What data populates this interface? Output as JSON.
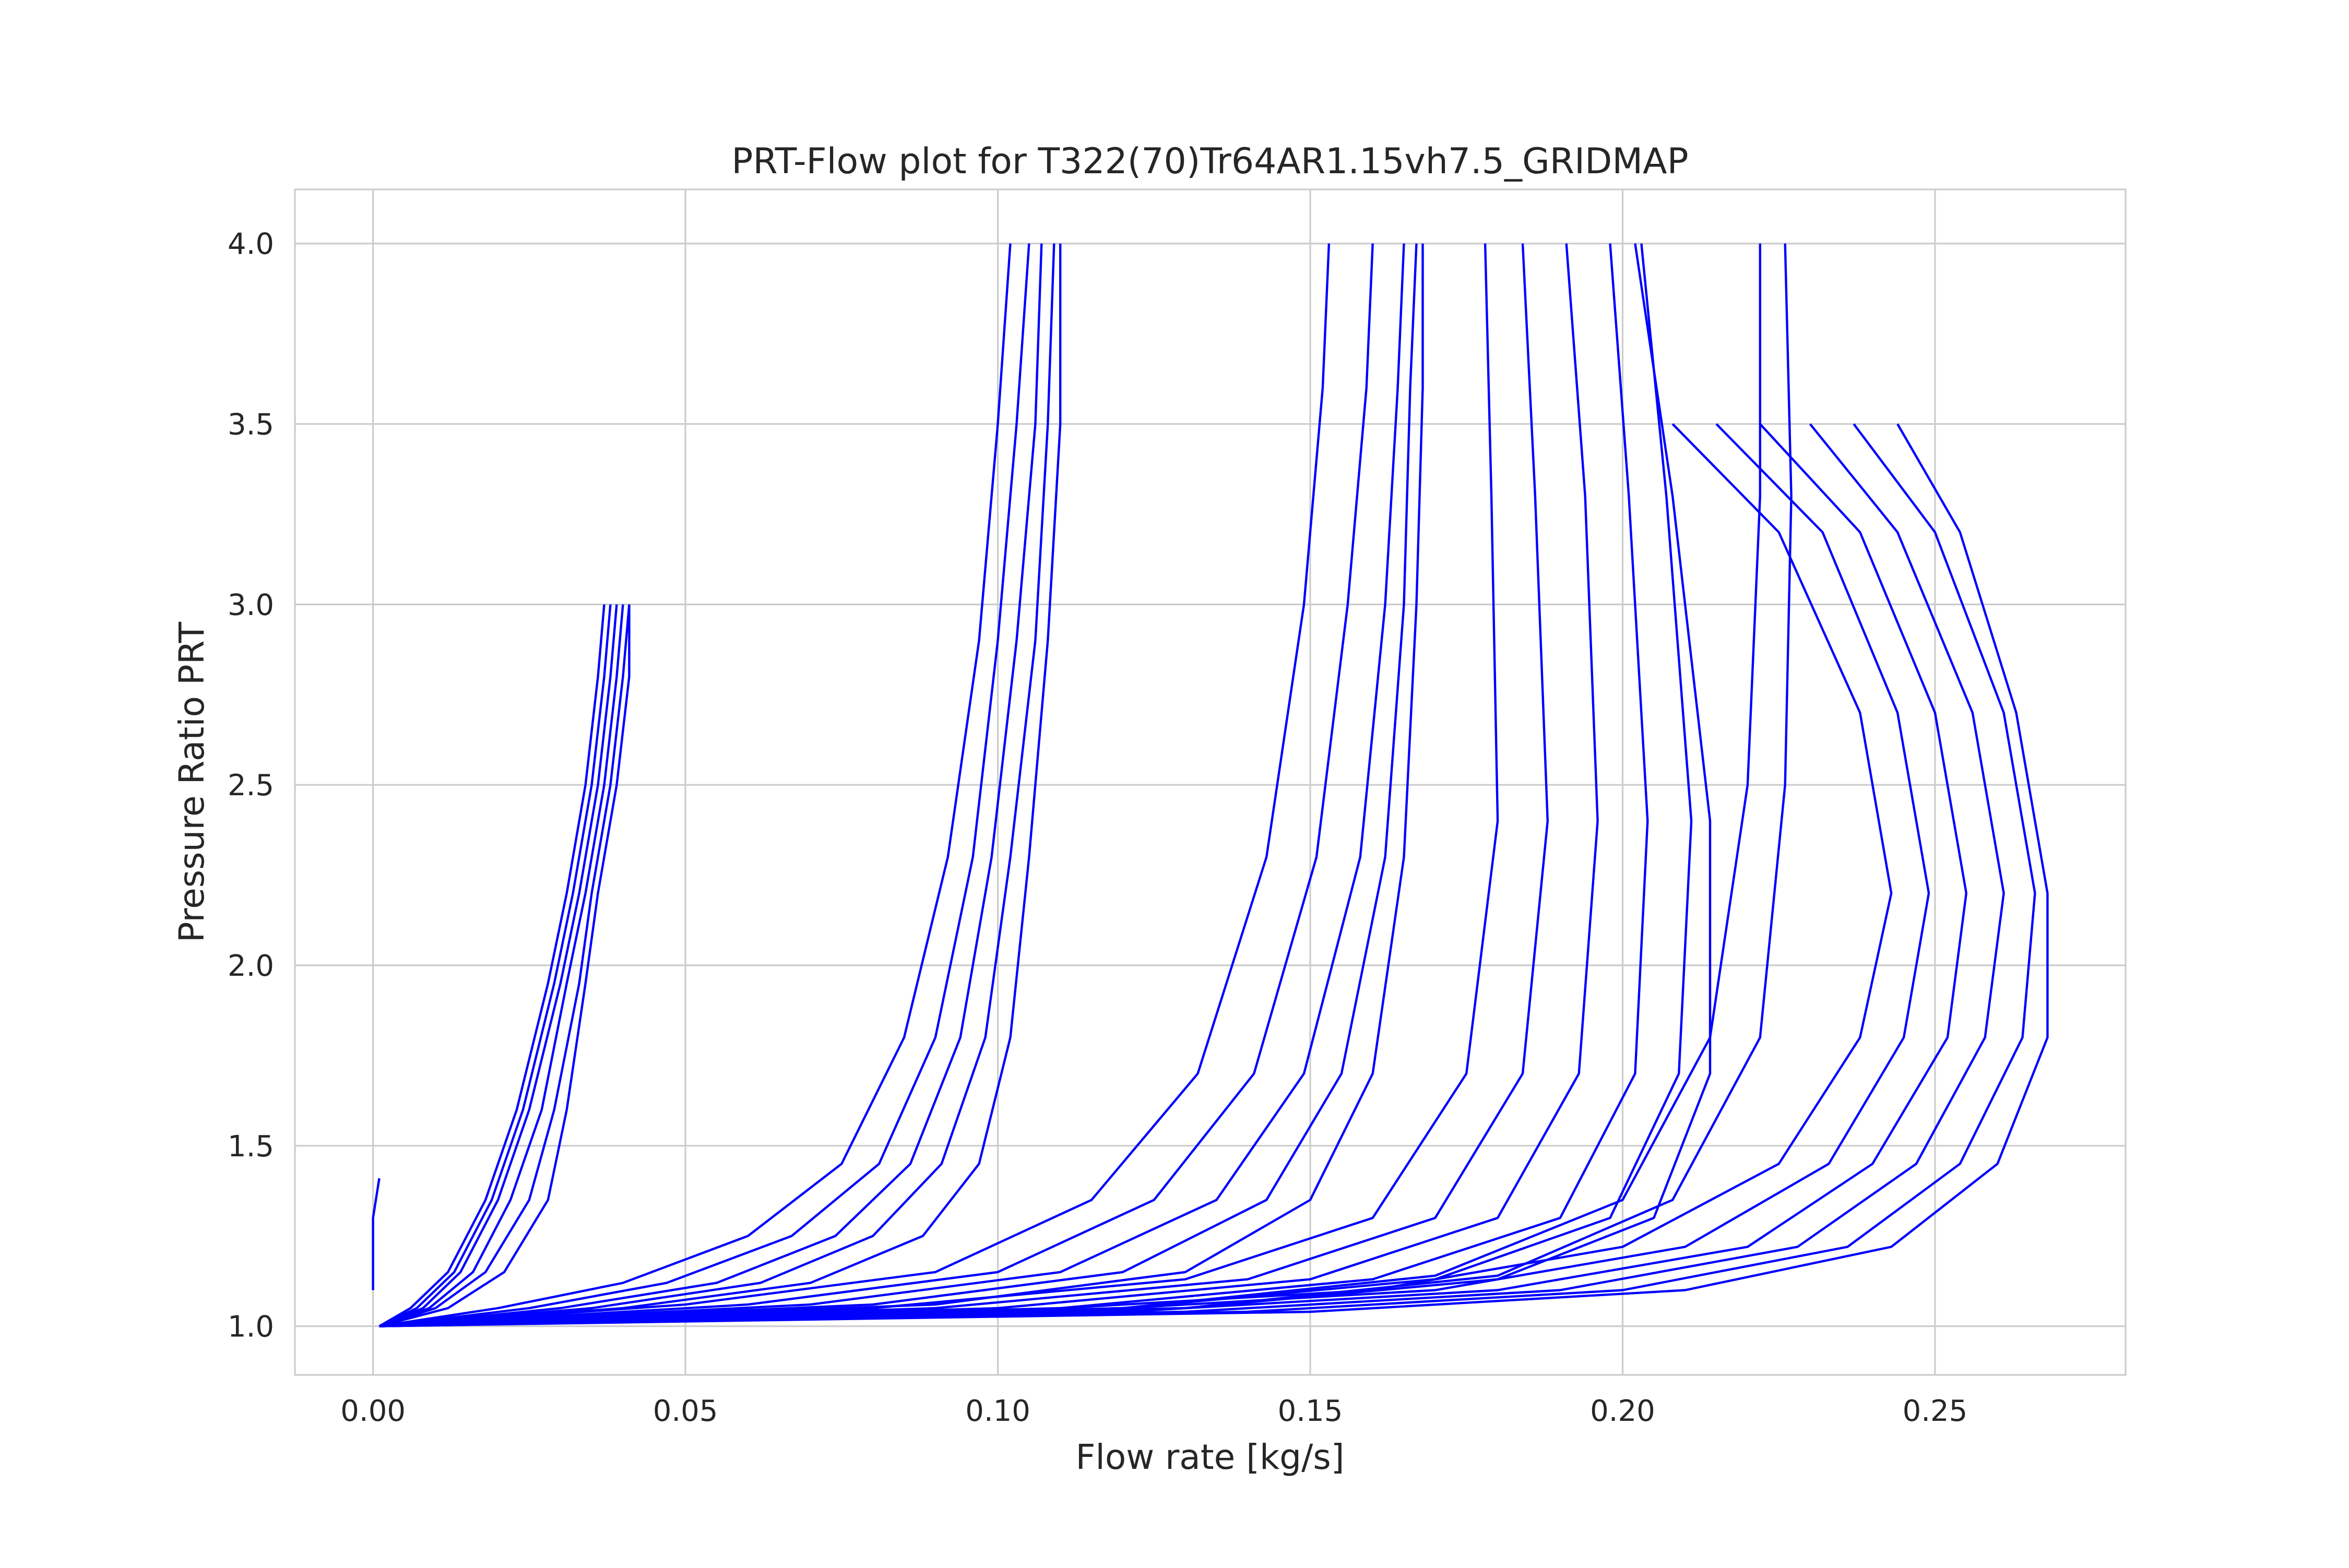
{
  "chart_data": {
    "type": "line",
    "title": "PRT-Flow plot for T322(70)Tr64AR1.15vh7.5_GRIDMAP",
    "xlabel": "Flow rate [kg/s]",
    "ylabel": "Pressure Ratio PRT",
    "xlim": [
      -0.0125,
      0.2805
    ],
    "ylim": [
      0.865,
      4.15
    ],
    "xticks": [
      0.0,
      0.05,
      0.1,
      0.15,
      0.2,
      0.25
    ],
    "xtick_labels": [
      "0.00",
      "0.05",
      "0.10",
      "0.15",
      "0.20",
      "0.25"
    ],
    "yticks": [
      1.0,
      1.5,
      2.0,
      2.5,
      3.0,
      3.5,
      4.0
    ],
    "ytick_labels": [
      "1.0",
      "1.5",
      "2.0",
      "2.5",
      "3.0",
      "3.5",
      "4.0"
    ],
    "grid": true,
    "line_color": "#0000ff",
    "series": [
      {
        "x": [
          0.001,
          0.006,
          0.012,
          0.018,
          0.023,
          0.028,
          0.031,
          0.034,
          0.036,
          0.037
        ],
        "y": [
          1.0,
          1.05,
          1.15,
          1.35,
          1.6,
          1.95,
          2.2,
          2.5,
          2.8,
          3.0
        ]
      },
      {
        "x": [
          0.001,
          0.007,
          0.013,
          0.019,
          0.024,
          0.029,
          0.032,
          0.035,
          0.037,
          0.038
        ],
        "y": [
          1.0,
          1.05,
          1.15,
          1.35,
          1.6,
          1.95,
          2.2,
          2.5,
          2.8,
          3.0
        ]
      },
      {
        "x": [
          0.001,
          0.008,
          0.014,
          0.02,
          0.025,
          0.03,
          0.033,
          0.036,
          0.038,
          0.039
        ],
        "y": [
          1.0,
          1.05,
          1.15,
          1.35,
          1.6,
          1.95,
          2.2,
          2.5,
          2.8,
          3.0
        ]
      },
      {
        "x": [
          0.001,
          0.009,
          0.016,
          0.022,
          0.027,
          0.031,
          0.034,
          0.037,
          0.039,
          0.04
        ],
        "y": [
          1.0,
          1.05,
          1.15,
          1.35,
          1.6,
          1.95,
          2.2,
          2.5,
          2.8,
          3.0
        ]
      },
      {
        "x": [
          0.001,
          0.01,
          0.018,
          0.025,
          0.029,
          0.033,
          0.035,
          0.038,
          0.04,
          0.041
        ],
        "y": [
          1.0,
          1.05,
          1.15,
          1.35,
          1.6,
          1.95,
          2.2,
          2.5,
          2.8,
          3.0
        ]
      },
      {
        "x": [
          0.001,
          0.012,
          0.021,
          0.028,
          0.031,
          0.034,
          0.036,
          0.039,
          0.041,
          0.041
        ],
        "y": [
          1.0,
          1.05,
          1.15,
          1.35,
          1.6,
          1.95,
          2.2,
          2.5,
          2.8,
          3.0
        ]
      },
      {
        "x": [
          0.001,
          0.02,
          0.04,
          0.06,
          0.075,
          0.085,
          0.092,
          0.097,
          0.1,
          0.102
        ],
        "y": [
          1.0,
          1.05,
          1.12,
          1.25,
          1.45,
          1.8,
          2.3,
          2.9,
          3.5,
          4.0
        ]
      },
      {
        "x": [
          0.001,
          0.025,
          0.047,
          0.067,
          0.081,
          0.09,
          0.096,
          0.1,
          0.103,
          0.105
        ],
        "y": [
          1.0,
          1.05,
          1.12,
          1.25,
          1.45,
          1.8,
          2.3,
          2.9,
          3.5,
          4.0
        ]
      },
      {
        "x": [
          0.001,
          0.03,
          0.055,
          0.074,
          0.086,
          0.094,
          0.099,
          0.103,
          0.106,
          0.107
        ],
        "y": [
          1.0,
          1.05,
          1.12,
          1.25,
          1.45,
          1.8,
          2.3,
          2.9,
          3.5,
          4.0
        ]
      },
      {
        "x": [
          0.001,
          0.035,
          0.062,
          0.08,
          0.091,
          0.098,
          0.102,
          0.106,
          0.108,
          0.109
        ],
        "y": [
          1.0,
          1.05,
          1.12,
          1.25,
          1.45,
          1.8,
          2.3,
          2.9,
          3.5,
          4.0
        ]
      },
      {
        "x": [
          0.001,
          0.04,
          0.07,
          0.088,
          0.097,
          0.102,
          0.105,
          0.108,
          0.11,
          0.11
        ],
        "y": [
          1.0,
          1.05,
          1.12,
          1.25,
          1.45,
          1.8,
          2.3,
          2.9,
          3.5,
          4.0
        ]
      },
      {
        "x": [
          0.001,
          0.05,
          0.09,
          0.115,
          0.132,
          0.143,
          0.149,
          0.152,
          0.153
        ],
        "y": [
          1.0,
          1.06,
          1.15,
          1.35,
          1.7,
          2.3,
          3.0,
          3.6,
          4.0
        ]
      },
      {
        "x": [
          0.001,
          0.06,
          0.1,
          0.125,
          0.141,
          0.151,
          0.156,
          0.159,
          0.16
        ],
        "y": [
          1.0,
          1.06,
          1.15,
          1.35,
          1.7,
          2.3,
          3.0,
          3.6,
          4.0
        ]
      },
      {
        "x": [
          0.001,
          0.07,
          0.11,
          0.135,
          0.149,
          0.158,
          0.162,
          0.164,
          0.165
        ],
        "y": [
          1.0,
          1.06,
          1.15,
          1.35,
          1.7,
          2.3,
          3.0,
          3.6,
          4.0
        ]
      },
      {
        "x": [
          0.001,
          0.08,
          0.12,
          0.143,
          0.155,
          0.162,
          0.165,
          0.166,
          0.167
        ],
        "y": [
          1.0,
          1.06,
          1.15,
          1.35,
          1.7,
          2.3,
          3.0,
          3.6,
          4.0
        ]
      },
      {
        "x": [
          0.001,
          0.09,
          0.13,
          0.15,
          0.16,
          0.165,
          0.167,
          0.168,
          0.168
        ],
        "y": [
          1.0,
          1.06,
          1.15,
          1.35,
          1.7,
          2.3,
          3.0,
          3.6,
          4.0
        ]
      },
      {
        "x": [
          0.001,
          0.08,
          0.13,
          0.16,
          0.175,
          0.18,
          0.179,
          0.178
        ],
        "y": [
          1.0,
          1.05,
          1.13,
          1.3,
          1.7,
          2.4,
          3.3,
          4.0
        ]
      },
      {
        "x": [
          0.001,
          0.09,
          0.14,
          0.17,
          0.184,
          0.188,
          0.186,
          0.184
        ],
        "y": [
          1.0,
          1.05,
          1.13,
          1.3,
          1.7,
          2.4,
          3.3,
          4.0
        ]
      },
      {
        "x": [
          0.001,
          0.1,
          0.15,
          0.18,
          0.193,
          0.196,
          0.194,
          0.191
        ],
        "y": [
          1.0,
          1.05,
          1.13,
          1.3,
          1.7,
          2.4,
          3.3,
          4.0
        ]
      },
      {
        "x": [
          0.001,
          0.11,
          0.16,
          0.19,
          0.202,
          0.204,
          0.201,
          0.198
        ],
        "y": [
          1.0,
          1.05,
          1.13,
          1.3,
          1.7,
          2.4,
          3.3,
          4.0
        ]
      },
      {
        "x": [
          0.001,
          0.12,
          0.17,
          0.198,
          0.209,
          0.211,
          0.207,
          0.203
        ],
        "y": [
          1.0,
          1.05,
          1.13,
          1.3,
          1.7,
          2.4,
          3.3,
          4.0
        ]
      },
      {
        "x": [
          0.001,
          0.13,
          0.18,
          0.205,
          0.214,
          0.214,
          0.208,
          0.202
        ],
        "y": [
          1.0,
          1.05,
          1.13,
          1.3,
          1.7,
          2.4,
          3.3,
          4.0
        ]
      },
      {
        "x": [
          0.001,
          0.1,
          0.16,
          0.2,
          0.225,
          0.238,
          0.243,
          0.238,
          0.225,
          0.208
        ],
        "y": [
          1.0,
          1.04,
          1.1,
          1.22,
          1.45,
          1.8,
          2.2,
          2.7,
          3.2,
          3.5
        ]
      },
      {
        "x": [
          0.001,
          0.11,
          0.17,
          0.21,
          0.233,
          0.245,
          0.249,
          0.244,
          0.232,
          0.215
        ],
        "y": [
          1.0,
          1.04,
          1.1,
          1.22,
          1.45,
          1.8,
          2.2,
          2.7,
          3.2,
          3.5
        ]
      },
      {
        "x": [
          0.001,
          0.12,
          0.18,
          0.22,
          0.24,
          0.252,
          0.255,
          0.25,
          0.238,
          0.222
        ],
        "y": [
          1.0,
          1.04,
          1.1,
          1.22,
          1.45,
          1.8,
          2.2,
          2.7,
          3.2,
          3.5
        ]
      },
      {
        "x": [
          0.001,
          0.13,
          0.19,
          0.228,
          0.247,
          0.258,
          0.261,
          0.256,
          0.244,
          0.23
        ],
        "y": [
          1.0,
          1.04,
          1.1,
          1.22,
          1.45,
          1.8,
          2.2,
          2.7,
          3.2,
          3.5
        ]
      },
      {
        "x": [
          0.001,
          0.14,
          0.2,
          0.236,
          0.254,
          0.264,
          0.266,
          0.261,
          0.25,
          0.237
        ],
        "y": [
          1.0,
          1.04,
          1.1,
          1.22,
          1.45,
          1.8,
          2.2,
          2.7,
          3.2,
          3.5
        ]
      },
      {
        "x": [
          0.001,
          0.15,
          0.21,
          0.243,
          0.26,
          0.268,
          0.268,
          0.263,
          0.254,
          0.244
        ],
        "y": [
          1.0,
          1.04,
          1.1,
          1.22,
          1.45,
          1.8,
          2.2,
          2.7,
          3.2,
          3.5
        ]
      },
      {
        "x": [
          0.001,
          0.12,
          0.17,
          0.2,
          0.214,
          0.22,
          0.222,
          0.222
        ],
        "y": [
          1.0,
          1.05,
          1.14,
          1.35,
          1.8,
          2.5,
          3.3,
          4.0
        ]
      },
      {
        "x": [
          0.001,
          0.13,
          0.18,
          0.208,
          0.222,
          0.226,
          0.227,
          0.226
        ],
        "y": [
          1.0,
          1.05,
          1.14,
          1.35,
          1.8,
          2.5,
          3.3,
          4.0
        ]
      },
      {
        "x": [
          0.001,
          0.0,
          0.0,
          0.0
        ],
        "y": [
          1.41,
          1.3,
          1.2,
          1.1
        ]
      }
    ]
  }
}
